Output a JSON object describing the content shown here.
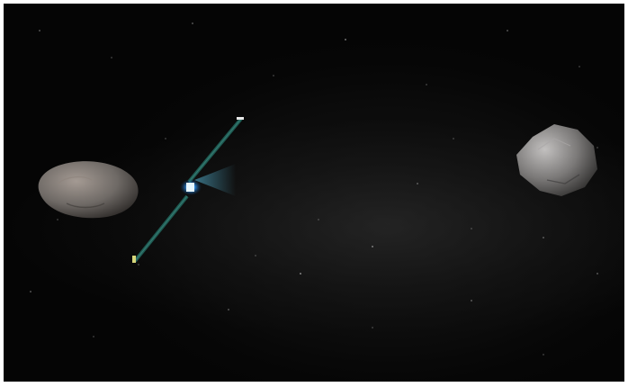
{
  "scene": {
    "background_color": "#050505",
    "objects": [
      {
        "name": "asteroid-left",
        "color": "#6f6a66"
      },
      {
        "name": "spacecraft",
        "engine_color": "#3aa0ff",
        "panel_color": "#1f5a52"
      },
      {
        "name": "asteroid-right",
        "color": "#7a7877"
      }
    ]
  }
}
